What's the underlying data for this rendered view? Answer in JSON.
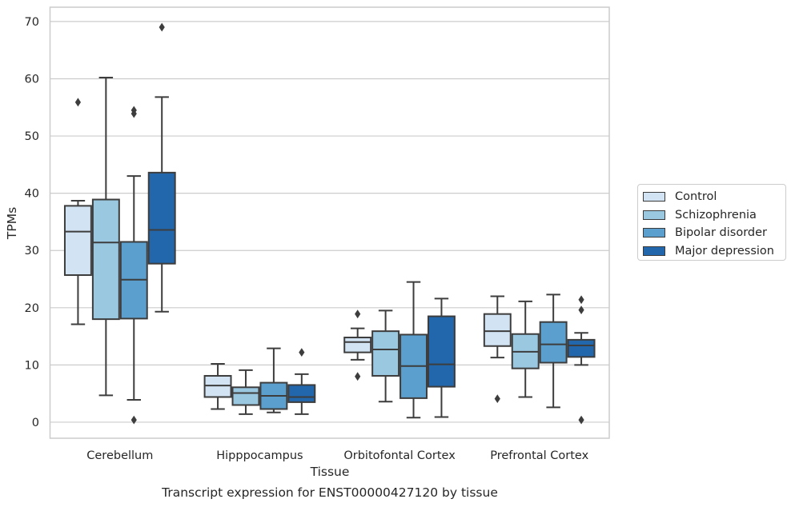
{
  "chart_data": {
    "type": "box",
    "title": "Transcript expression for ENST00000427120 by tissue",
    "xlabel": "Tissue",
    "ylabel": "TPMs",
    "categories": [
      "Cerebellum",
      "Hipppocampus",
      "Orbitofontal Cortex",
      "Prefrontal Cortex"
    ],
    "ylim": [
      -2.8,
      72.5
    ],
    "yticks": [
      0,
      10,
      20,
      30,
      40,
      50,
      60,
      70
    ],
    "grid": "horizontal",
    "legend_position": "right",
    "series": [
      {
        "name": "Control",
        "color": "#d2e3f3",
        "boxes": [
          {
            "whisker_low": 17.1,
            "q1": 25.7,
            "median": 33.3,
            "q3": 37.8,
            "whisker_high": 38.7,
            "outliers": [
              55.9
            ]
          },
          {
            "whisker_low": 2.3,
            "q1": 4.4,
            "median": 6.4,
            "q3": 8.1,
            "whisker_high": 10.2,
            "outliers": []
          },
          {
            "whisker_low": 10.9,
            "q1": 12.2,
            "median": 14.0,
            "q3": 14.8,
            "whisker_high": 16.4,
            "outliers": [
              18.9,
              8.0
            ]
          },
          {
            "whisker_low": 11.3,
            "q1": 13.3,
            "median": 15.9,
            "q3": 18.9,
            "whisker_high": 22.0,
            "outliers": [
              4.1
            ]
          }
        ]
      },
      {
        "name": "Schizophrenia",
        "color": "#9ac8e0",
        "boxes": [
          {
            "whisker_low": 4.7,
            "q1": 18.0,
            "median": 31.4,
            "q3": 38.9,
            "whisker_high": 60.2,
            "outliers": []
          },
          {
            "whisker_low": 1.4,
            "q1": 3.0,
            "median": 5.1,
            "q3": 6.1,
            "whisker_high": 9.1,
            "outliers": []
          },
          {
            "whisker_low": 3.6,
            "q1": 8.1,
            "median": 12.7,
            "q3": 15.9,
            "whisker_high": 19.5,
            "outliers": []
          },
          {
            "whisker_low": 4.4,
            "q1": 9.4,
            "median": 12.3,
            "q3": 15.4,
            "whisker_high": 21.1,
            "outliers": []
          }
        ]
      },
      {
        "name": "Bipolar disorder",
        "color": "#5a9fcd",
        "boxes": [
          {
            "whisker_low": 3.9,
            "q1": 18.1,
            "median": 24.9,
            "q3": 31.5,
            "whisker_high": 43.0,
            "outliers": [
              54.5,
              53.9,
              0.4
            ]
          },
          {
            "whisker_low": 1.7,
            "q1": 2.3,
            "median": 4.6,
            "q3": 6.9,
            "whisker_high": 12.9,
            "outliers": []
          },
          {
            "whisker_low": 0.8,
            "q1": 4.2,
            "median": 9.8,
            "q3": 15.3,
            "whisker_high": 24.5,
            "outliers": []
          },
          {
            "whisker_low": 2.6,
            "q1": 10.4,
            "median": 13.6,
            "q3": 17.5,
            "whisker_high": 22.3,
            "outliers": []
          }
        ]
      },
      {
        "name": "Major depression",
        "color": "#2266ac",
        "boxes": [
          {
            "whisker_low": 19.3,
            "q1": 27.7,
            "median": 33.6,
            "q3": 43.6,
            "whisker_high": 56.8,
            "outliers": [
              69.0
            ]
          },
          {
            "whisker_low": 1.4,
            "q1": 3.5,
            "median": 4.4,
            "q3": 6.5,
            "whisker_high": 8.4,
            "outliers": [
              12.2
            ]
          },
          {
            "whisker_low": 0.9,
            "q1": 6.2,
            "median": 10.1,
            "q3": 18.5,
            "whisker_high": 21.6,
            "outliers": []
          },
          {
            "whisker_low": 10.0,
            "q1": 11.4,
            "median": 13.4,
            "q3": 14.4,
            "whisker_high": 15.6,
            "outliers": [
              21.4,
              19.6,
              0.4
            ]
          }
        ]
      }
    ]
  }
}
